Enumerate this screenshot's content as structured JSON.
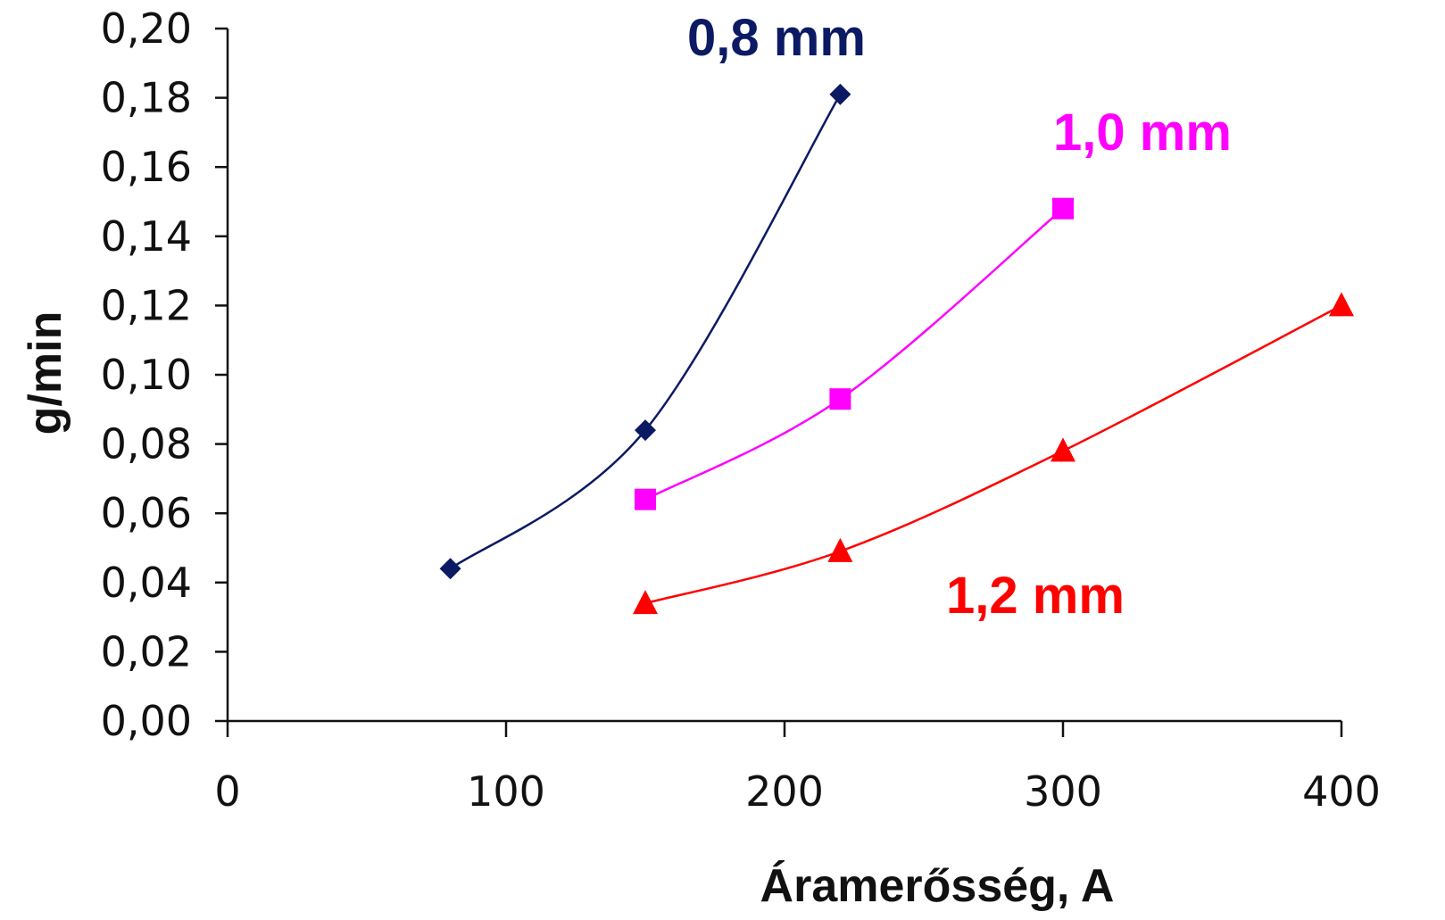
{
  "chart_data": {
    "type": "line",
    "xlabel": "Áramerősség, A",
    "ylabel": "g/min",
    "xlim": [
      0,
      400
    ],
    "ylim": [
      0,
      0.2
    ],
    "x_ticks": [
      "0",
      "100",
      "200",
      "300",
      "400"
    ],
    "y_ticks": [
      "0,00",
      "0,02",
      "0,04",
      "0,06",
      "0,08",
      "0,10",
      "0,12",
      "0,14",
      "0,16",
      "0,18",
      "0,20"
    ],
    "grid": false,
    "series": [
      {
        "name": "0,8 mm",
        "color": "#0b1a63",
        "marker": "diamond",
        "x": [
          80,
          150,
          220
        ],
        "y": [
          0.044,
          0.084,
          0.181
        ]
      },
      {
        "name": "1,0 mm",
        "color": "#ff00ff",
        "marker": "square",
        "x": [
          150,
          220,
          300
        ],
        "y": [
          0.064,
          0.093,
          0.148
        ]
      },
      {
        "name": "1,2 mm",
        "color": "#ff0000",
        "marker": "triangle",
        "x": [
          150,
          220,
          300,
          400
        ],
        "y": [
          0.034,
          0.049,
          0.078,
          0.12
        ]
      }
    ]
  }
}
